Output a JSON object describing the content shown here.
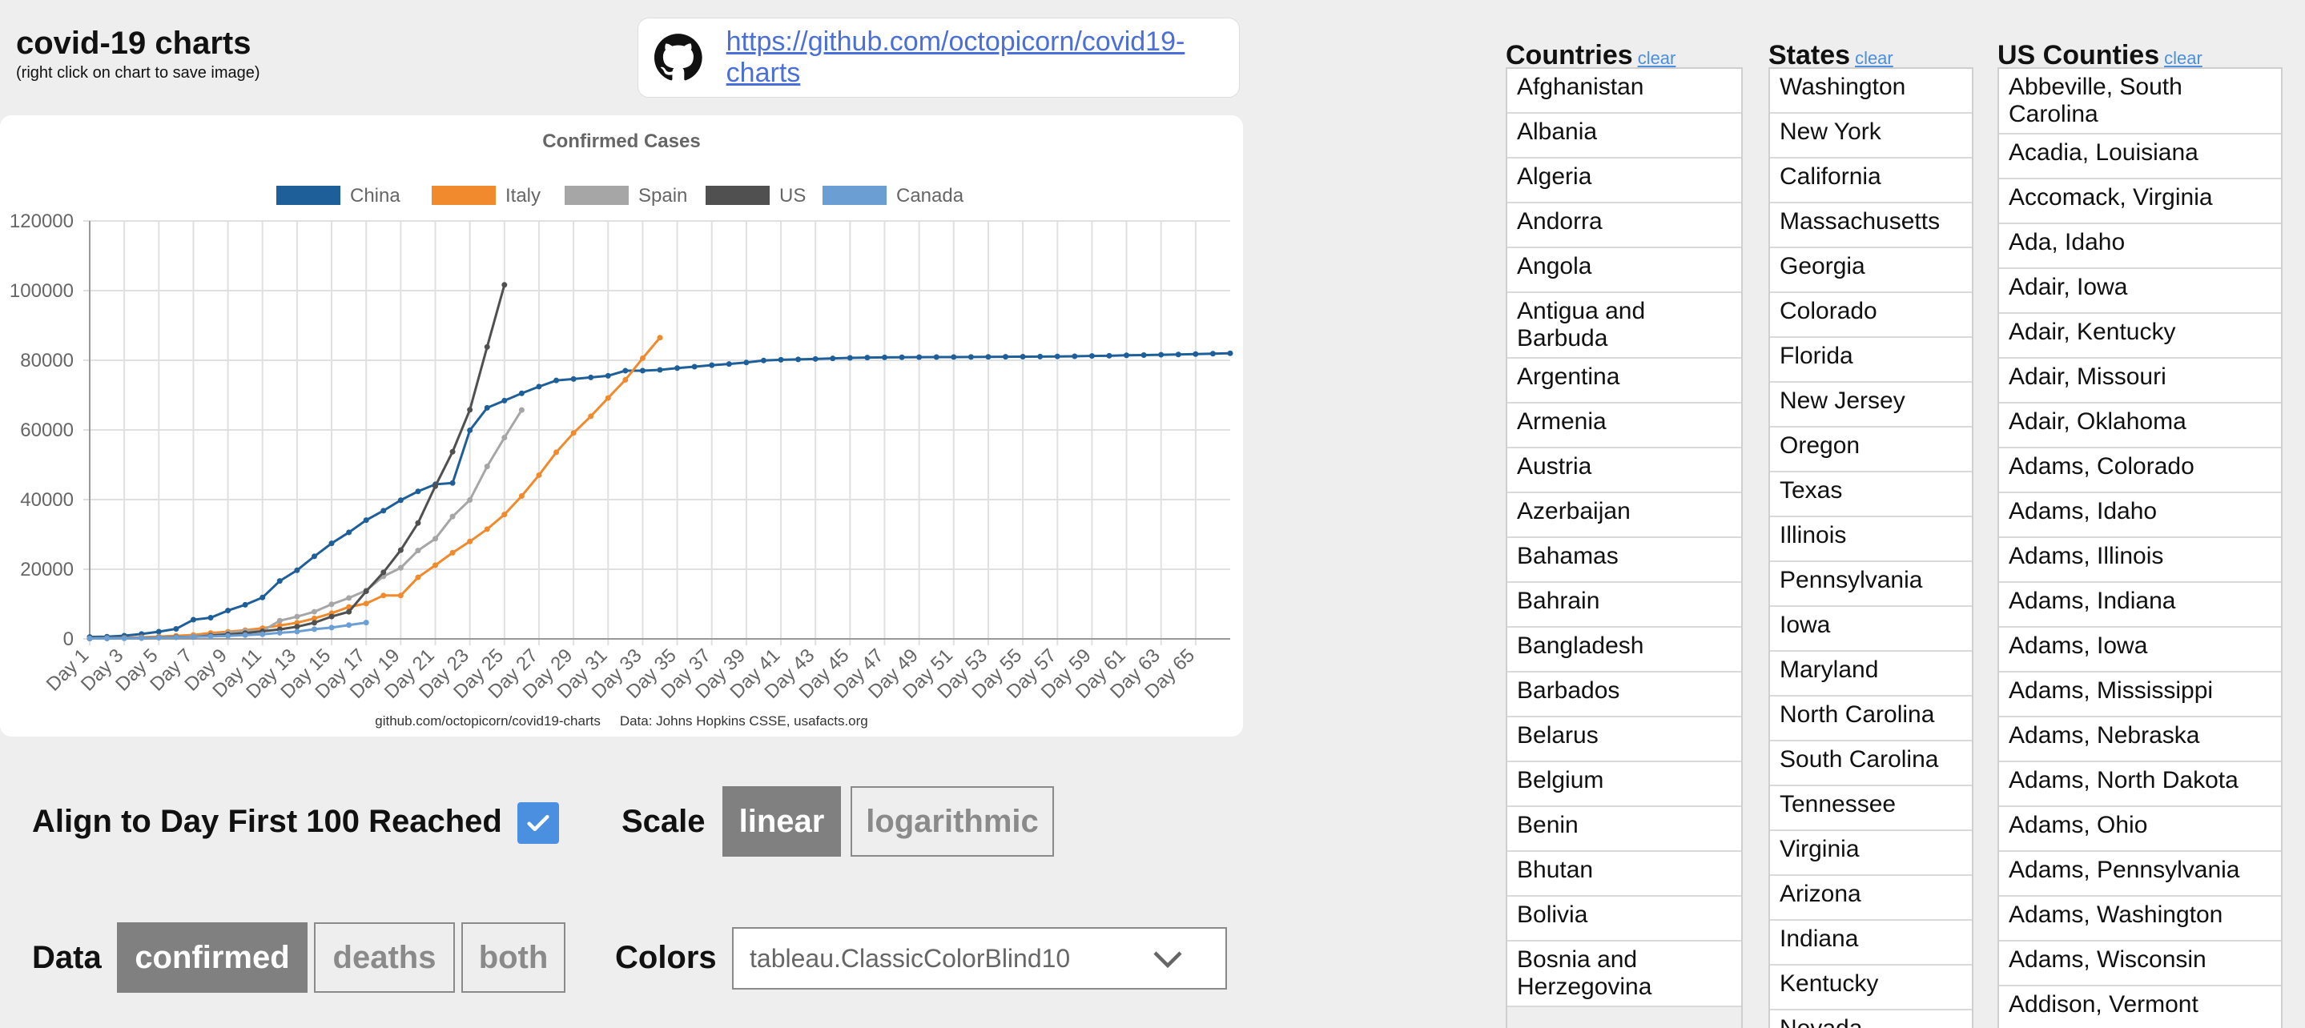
{
  "header": {
    "title": "covid-19 charts",
    "subtitle": "(right click on chart to save image)",
    "repo_url": "https://github.com/octopicorn/covid19-charts"
  },
  "chart": {
    "footer_left": "github.com/octopicorn/covid19-charts",
    "footer_right": "Data: Johns Hopkins CSSE, usafacts.org"
  },
  "chart_data": {
    "type": "line",
    "title": "Confirmed Cases",
    "xlabel": "",
    "ylabel": "",
    "ylim": [
      0,
      120000
    ],
    "yticks": [
      0,
      20000,
      40000,
      60000,
      80000,
      100000,
      120000
    ],
    "grid": true,
    "legend_position": "top",
    "tick_labels": [
      "Day 1",
      "Day 3",
      "Day 5",
      "Day 7",
      "Day 9",
      "Day 11",
      "Day 13",
      "Day 15",
      "Day 17",
      "Day 19",
      "Day 21",
      "Day 23",
      "Day 25",
      "Day 27",
      "Day 29",
      "Day 31",
      "Day 33",
      "Day 35",
      "Day 37",
      "Day 39",
      "Day 41",
      "Day 43",
      "Day 45",
      "Day 47",
      "Day 49",
      "Day 51",
      "Day 53",
      "Day 55",
      "Day 57",
      "Day 59",
      "Day 61",
      "Day 63",
      "Day 65"
    ],
    "series": [
      {
        "name": "China",
        "color": "#1f5f99",
        "values": [
          548,
          643,
          920,
          1406,
          2075,
          2877,
          5509,
          6087,
          8141,
          9802,
          11891,
          16630,
          19716,
          23707,
          27440,
          30587,
          34110,
          36814,
          39829,
          42354,
          44386,
          44759,
          59895,
          66358,
          68413,
          70513,
          72434,
          74211,
          74619,
          75077,
          75550,
          77001,
          77022,
          77241,
          77754,
          78166,
          78600,
          78928,
          79356,
          79932,
          80136,
          80261,
          80386,
          80537,
          80690,
          80770,
          80823,
          80860,
          80887,
          80921,
          80932,
          80945,
          80977,
          81003,
          81033,
          81058,
          81102,
          81156,
          81250,
          81305,
          81435,
          81498,
          81591,
          81661,
          81782,
          81897,
          82000
        ]
      },
      {
        "name": "Italy",
        "color": "#f08a2c",
        "values": [
          155,
          229,
          322,
          453,
          655,
          888,
          1128,
          1694,
          2036,
          2502,
          3089,
          3858,
          4636,
          5883,
          7375,
          9172,
          10149,
          12462,
          12462,
          17660,
          21157,
          24747,
          27980,
          31506,
          35713,
          41035,
          47021,
          53578,
          59138,
          63927,
          69176,
          74386,
          80589,
          86498
        ]
      },
      {
        "name": "Spain",
        "color": "#a6a6a6",
        "values": [
          120,
          165,
          222,
          259,
          400,
          500,
          673,
          1073,
          1695,
          2277,
          2277,
          5232,
          6391,
          7798,
          9942,
          11748,
          13910,
          17963,
          20410,
          25374,
          28768,
          35136,
          39885,
          49515,
          57786,
          65719
        ]
      },
      {
        "name": "US",
        "color": "#505050",
        "values": [
          118,
          149,
          217,
          262,
          402,
          518,
          583,
          959,
          1281,
          1663,
          2179,
          2727,
          3499,
          4632,
          6421,
          7786,
          13680,
          19101,
          25493,
          33276,
          43847,
          53740,
          65778,
          83836,
          101657
        ]
      },
      {
        "name": "Canada",
        "color": "#6b9fd4",
        "values": [
          103,
          138,
          176,
          249,
          342,
          441,
          598,
          727,
          873,
          1087,
          1331,
          1739,
          2088,
          2790,
          3251,
          3969,
          4682
        ]
      }
    ]
  },
  "controls": {
    "align_label": "Align to Day First 100 Reached",
    "align_checked": true,
    "scale_label": "Scale",
    "scale_options": [
      "linear",
      "logarithmic"
    ],
    "scale_selected": "linear",
    "data_label": "Data",
    "data_options": [
      "confirmed",
      "deaths",
      "both"
    ],
    "data_selected": "confirmed",
    "colors_label": "Colors",
    "colors_value": "tableau.ClassicColorBlind10"
  },
  "lists": {
    "countries": {
      "title": "Countries",
      "clear": "clear",
      "items": [
        "Afghanistan",
        "Albania",
        "Algeria",
        "Andorra",
        "Angola",
        "Antigua and Barbuda",
        "Argentina",
        "Armenia",
        "Austria",
        "Azerbaijan",
        "Bahamas",
        "Bahrain",
        "Bangladesh",
        "Barbados",
        "Belarus",
        "Belgium",
        "Benin",
        "Bhutan",
        "Bolivia",
        "Bosnia and Herzegovina"
      ]
    },
    "states": {
      "title": "States",
      "clear": "clear",
      "items": [
        "Washington",
        "New York",
        "California",
        "Massachusetts",
        "Georgia",
        "Colorado",
        "Florida",
        "New Jersey",
        "Oregon",
        "Texas",
        "Illinois",
        "Pennsylvania",
        "Iowa",
        "Maryland",
        "North Carolina",
        "South Carolina",
        "Tennessee",
        "Virginia",
        "Arizona",
        "Indiana",
        "Kentucky",
        "Nevada"
      ]
    },
    "counties": {
      "title": "US Counties",
      "clear": "clear",
      "items": [
        "Abbeville, South Carolina",
        "Acadia, Louisiana",
        "Accomack, Virginia",
        "Ada, Idaho",
        "Adair, Iowa",
        "Adair, Kentucky",
        "Adair, Missouri",
        "Adair, Oklahoma",
        "Adams, Colorado",
        "Adams, Idaho",
        "Adams, Illinois",
        "Adams, Indiana",
        "Adams, Iowa",
        "Adams, Mississippi",
        "Adams, Nebraska",
        "Adams, North Dakota",
        "Adams, Ohio",
        "Adams, Pennsylvania",
        "Adams, Washington",
        "Adams, Wisconsin",
        "Addison, Vermont"
      ]
    }
  }
}
